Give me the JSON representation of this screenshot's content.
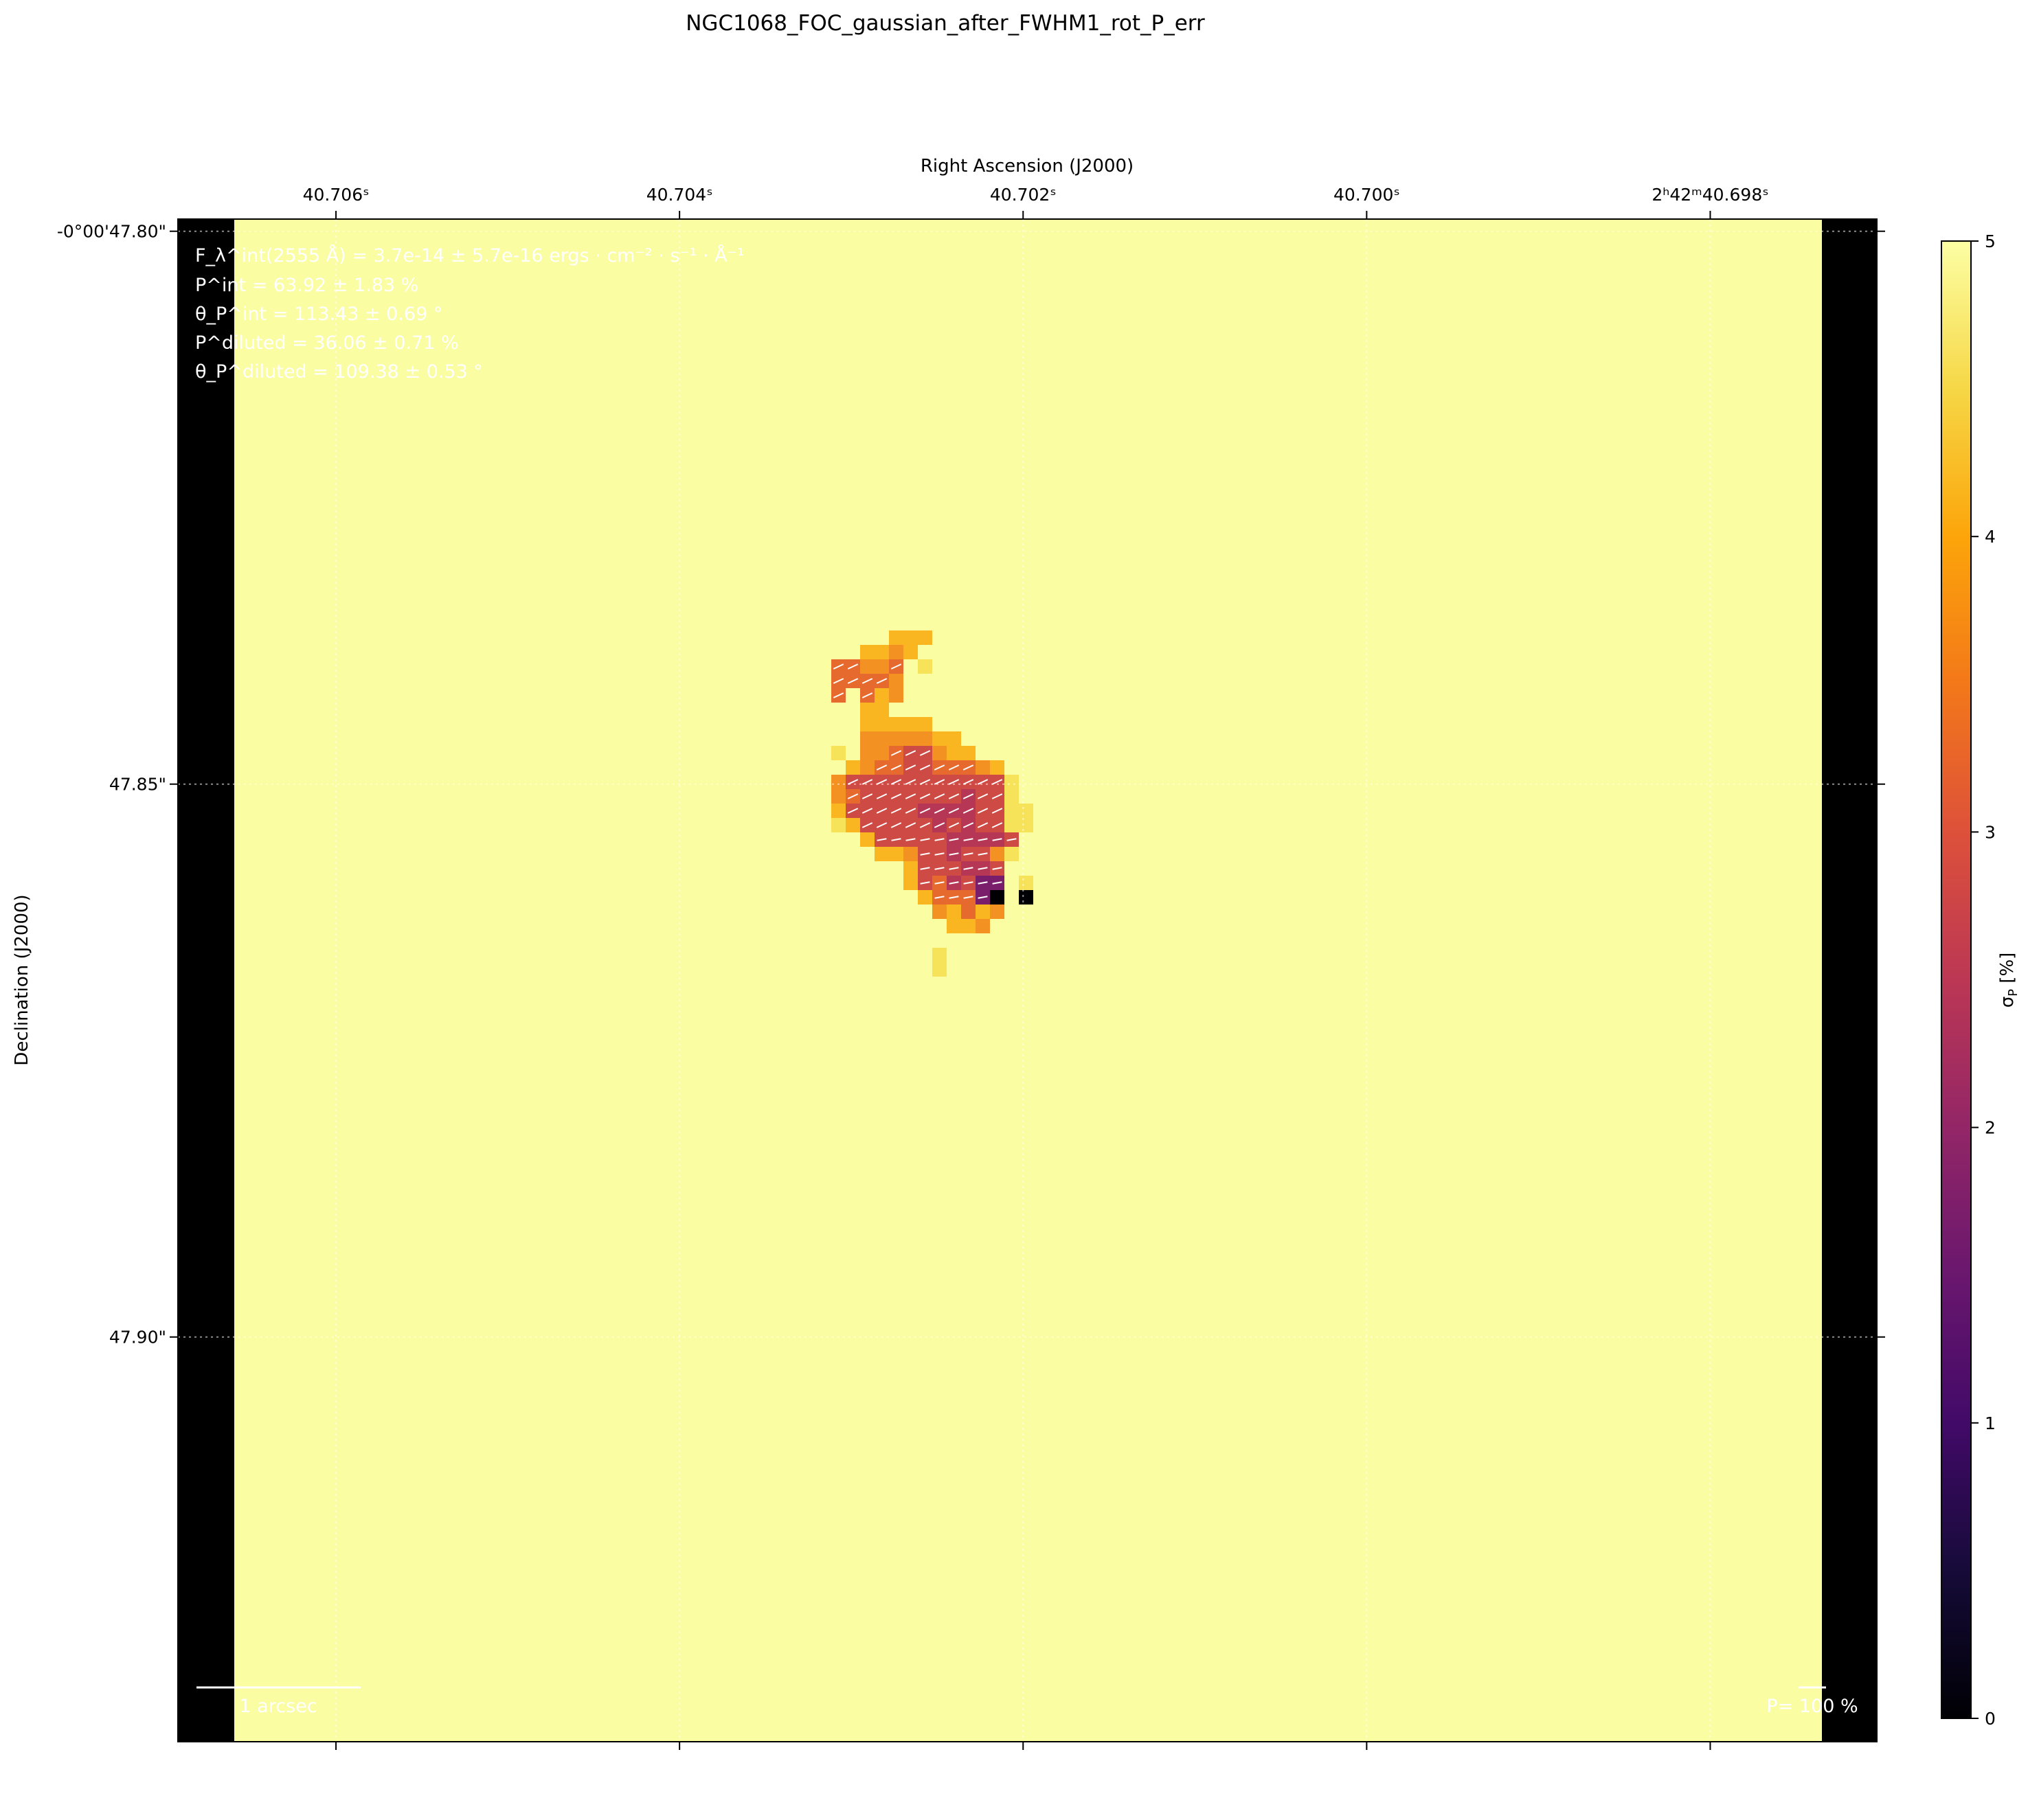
{
  "chart_data": {
    "type": "heatmap",
    "title": "NGC1068_FOC_gaussian_after_FWHM1_rot_P_err",
    "xlabel": "Right Ascension (J2000)",
    "ylabel": "Declination (J2000)",
    "x_tick_labels": [
      {
        "value": 40.706,
        "label": "40.706ˢ"
      },
      {
        "value": 40.704,
        "label": "40.704ˢ"
      },
      {
        "value": 40.702,
        "label": "40.702ˢ"
      },
      {
        "value": 40.7,
        "label": "40.700ˢ"
      },
      {
        "value": 40.698,
        "label": "2ʰ42ᵐ40.698ˢ"
      }
    ],
    "y_tick_labels": [
      {
        "value": 47.8,
        "label": "-0°00'47.80\""
      },
      {
        "value": 47.85,
        "label": "47.85\""
      },
      {
        "value": 47.9,
        "label": "47.90\""
      }
    ],
    "x_range": [
      40.70692,
      40.69703
    ],
    "y_range": [
      47.7989,
      47.9366
    ],
    "colorbar": {
      "label": "σ_P [%]",
      "colormap": "inferno",
      "range": [
        0,
        5
      ],
      "ticks": [
        "0",
        "1",
        "2",
        "3",
        "4",
        "5"
      ]
    },
    "background_value": 5,
    "colors": {
      "masked": "#000000",
      "saturated": "#fbfda2"
    },
    "annotations": {
      "flux": "F_λ^int(2555 Å) = 3.7e-14 ± 5.7e-16 ergs · cm⁻² · s⁻¹ · Å⁻¹",
      "p_int": "P^int = 63.92 ± 1.83 %",
      "theta_int": "θ_P^int = 113.43 ± 0.69 °",
      "p_diluted": "P^diluted = 36.06 ± 0.71 %",
      "theta_diluted": "θ_P^diluted = 109.38 ± 0.53 °",
      "scale_bar": "1 arcsec",
      "vector_scale": "P= 100 %"
    }
  }
}
